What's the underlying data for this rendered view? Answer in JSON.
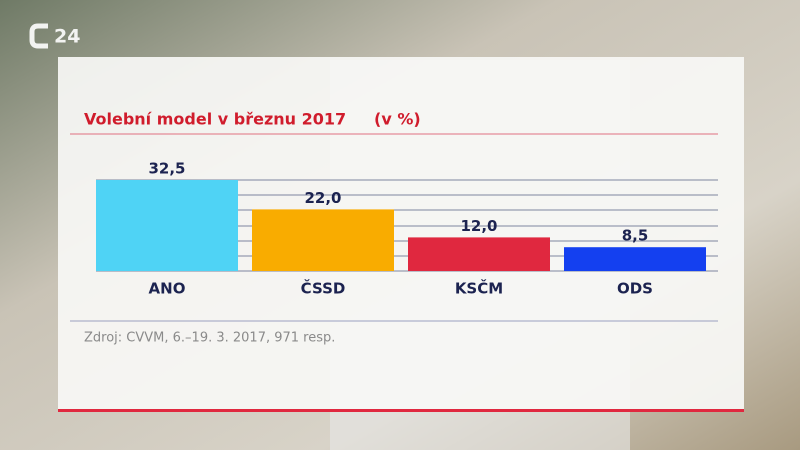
{
  "channel": "24",
  "chart_data": {
    "type": "bar",
    "title": "Volební model v březnu 2017",
    "subtitle": "(v %)",
    "categories": [
      "ANO",
      "ČSSD",
      "KSČM",
      "ODS"
    ],
    "values": [
      32.5,
      22.0,
      12.0,
      8.5
    ],
    "value_labels": [
      "32,5",
      "22,0",
      "12,0",
      "8,5"
    ],
    "colors": [
      "#4fd3f5",
      "#f9ac00",
      "#e0283f",
      "#1440f0"
    ],
    "source": "Zdroj: CVVM, 6.–19. 3. 2017, 971 resp."
  }
}
